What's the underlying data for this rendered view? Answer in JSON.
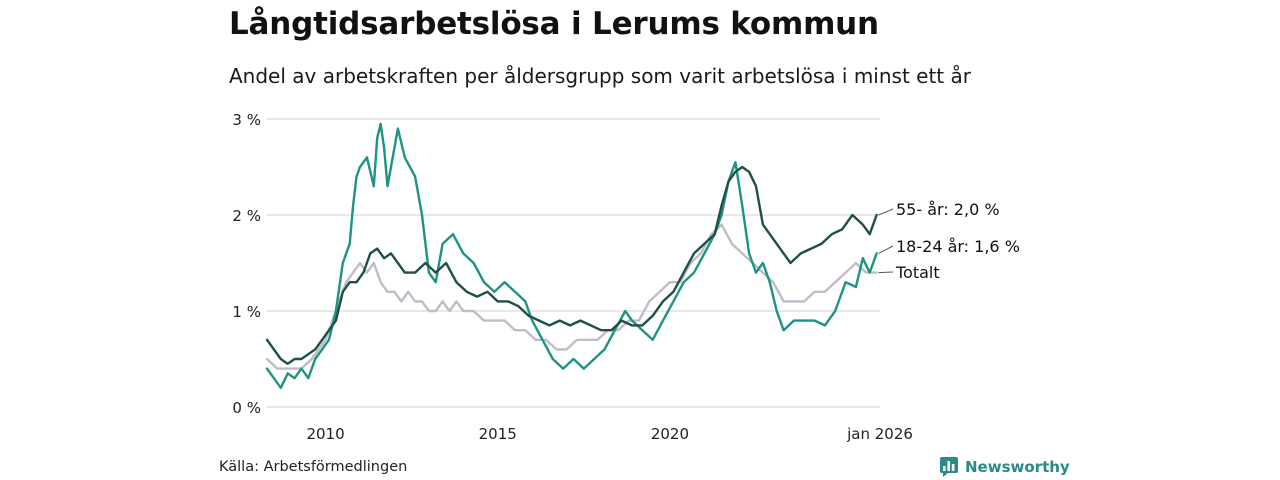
{
  "header": {
    "title": "Långtidsarbetslösa i Lerums kommun",
    "subtitle": "Andel av arbetskraften per åldersgrupp som varit arbetslösa i minst ett år"
  },
  "footer": {
    "source": "Källa: Arbetsförmedlingen",
    "brand": "Newsworthy"
  },
  "colors": {
    "age55": "#1f4f47",
    "age1824": "#1e9384",
    "total": "#c0bcc9",
    "grid": "#d9d9d9",
    "brand": "#2a8a85"
  },
  "chart_data": {
    "type": "line",
    "title": "Långtidsarbetslösa i Lerums kommun",
    "subtitle": "Andel av arbetskraften per åldersgrupp som varit arbetslösa i minst ett år",
    "ylim": [
      0,
      3
    ],
    "yticks": [
      0,
      1,
      2,
      3
    ],
    "ytick_labels": [
      "0 %",
      "1 %",
      "2 %",
      "3 %"
    ],
    "xlim": [
      2008.3,
      2026.1
    ],
    "xticks": [
      2010,
      2015,
      2020,
      2026.1
    ],
    "xtick_labels": [
      "2010",
      "2015",
      "2020",
      "jan 2026"
    ],
    "grid": "horizontal",
    "series": [
      {
        "name": "Totalt",
        "label": "Totalt",
        "color": "#c0bcc9",
        "points": [
          [
            2008.3,
            0.5
          ],
          [
            2008.6,
            0.4
          ],
          [
            2009.0,
            0.4
          ],
          [
            2009.3,
            0.4
          ],
          [
            2009.6,
            0.5
          ],
          [
            2009.8,
            0.6
          ],
          [
            2010.0,
            0.7
          ],
          [
            2010.2,
            0.9
          ],
          [
            2010.4,
            1.1
          ],
          [
            2010.6,
            1.3
          ],
          [
            2010.8,
            1.4
          ],
          [
            2011.0,
            1.5
          ],
          [
            2011.2,
            1.4
          ],
          [
            2011.4,
            1.5
          ],
          [
            2011.6,
            1.3
          ],
          [
            2011.8,
            1.2
          ],
          [
            2012.0,
            1.2
          ],
          [
            2012.2,
            1.1
          ],
          [
            2012.4,
            1.2
          ],
          [
            2012.6,
            1.1
          ],
          [
            2012.8,
            1.1
          ],
          [
            2013.0,
            1.0
          ],
          [
            2013.2,
            1.0
          ],
          [
            2013.4,
            1.1
          ],
          [
            2013.6,
            1.0
          ],
          [
            2013.8,
            1.1
          ],
          [
            2014.0,
            1.0
          ],
          [
            2014.3,
            1.0
          ],
          [
            2014.6,
            0.9
          ],
          [
            2014.9,
            0.9
          ],
          [
            2015.2,
            0.9
          ],
          [
            2015.5,
            0.8
          ],
          [
            2015.8,
            0.8
          ],
          [
            2016.1,
            0.7
          ],
          [
            2016.4,
            0.7
          ],
          [
            2016.7,
            0.6
          ],
          [
            2017.0,
            0.6
          ],
          [
            2017.3,
            0.7
          ],
          [
            2017.6,
            0.7
          ],
          [
            2017.9,
            0.7
          ],
          [
            2018.2,
            0.8
          ],
          [
            2018.5,
            0.8
          ],
          [
            2018.8,
            0.9
          ],
          [
            2019.1,
            0.9
          ],
          [
            2019.4,
            1.1
          ],
          [
            2019.7,
            1.2
          ],
          [
            2020.0,
            1.3
          ],
          [
            2020.3,
            1.3
          ],
          [
            2020.6,
            1.5
          ],
          [
            2020.9,
            1.6
          ],
          [
            2021.2,
            1.8
          ],
          [
            2021.5,
            1.9
          ],
          [
            2021.8,
            1.7
          ],
          [
            2022.1,
            1.6
          ],
          [
            2022.4,
            1.5
          ],
          [
            2022.7,
            1.4
          ],
          [
            2023.0,
            1.3
          ],
          [
            2023.3,
            1.1
          ],
          [
            2023.6,
            1.1
          ],
          [
            2023.9,
            1.1
          ],
          [
            2024.2,
            1.2
          ],
          [
            2024.5,
            1.2
          ],
          [
            2024.8,
            1.3
          ],
          [
            2025.1,
            1.4
          ],
          [
            2025.4,
            1.5
          ],
          [
            2025.7,
            1.4
          ],
          [
            2026.0,
            1.4
          ]
        ]
      },
      {
        "name": "18-24 år",
        "label": "18-24 år: 1,6 %",
        "color": "#1e9384",
        "points": [
          [
            2008.3,
            0.4
          ],
          [
            2008.5,
            0.3
          ],
          [
            2008.7,
            0.2
          ],
          [
            2008.9,
            0.35
          ],
          [
            2009.1,
            0.3
          ],
          [
            2009.3,
            0.4
          ],
          [
            2009.5,
            0.3
          ],
          [
            2009.7,
            0.5
          ],
          [
            2009.9,
            0.6
          ],
          [
            2010.1,
            0.7
          ],
          [
            2010.3,
            1.0
          ],
          [
            2010.5,
            1.5
          ],
          [
            2010.7,
            1.7
          ],
          [
            2010.8,
            2.1
          ],
          [
            2010.9,
            2.4
          ],
          [
            2011.0,
            2.5
          ],
          [
            2011.2,
            2.6
          ],
          [
            2011.4,
            2.3
          ],
          [
            2011.5,
            2.8
          ],
          [
            2011.6,
            2.95
          ],
          [
            2011.7,
            2.7
          ],
          [
            2011.8,
            2.3
          ],
          [
            2011.9,
            2.5
          ],
          [
            2012.1,
            2.9
          ],
          [
            2012.3,
            2.6
          ],
          [
            2012.6,
            2.4
          ],
          [
            2012.8,
            2.0
          ],
          [
            2013.0,
            1.4
          ],
          [
            2013.2,
            1.3
          ],
          [
            2013.4,
            1.7
          ],
          [
            2013.7,
            1.8
          ],
          [
            2014.0,
            1.6
          ],
          [
            2014.3,
            1.5
          ],
          [
            2014.6,
            1.3
          ],
          [
            2014.9,
            1.2
          ],
          [
            2015.2,
            1.3
          ],
          [
            2015.5,
            1.2
          ],
          [
            2015.8,
            1.1
          ],
          [
            2016.0,
            0.9
          ],
          [
            2016.3,
            0.7
          ],
          [
            2016.6,
            0.5
          ],
          [
            2016.9,
            0.4
          ],
          [
            2017.2,
            0.5
          ],
          [
            2017.5,
            0.4
          ],
          [
            2017.8,
            0.5
          ],
          [
            2018.1,
            0.6
          ],
          [
            2018.4,
            0.8
          ],
          [
            2018.7,
            1.0
          ],
          [
            2018.9,
            0.9
          ],
          [
            2019.2,
            0.8
          ],
          [
            2019.5,
            0.7
          ],
          [
            2019.8,
            0.9
          ],
          [
            2020.1,
            1.1
          ],
          [
            2020.4,
            1.3
          ],
          [
            2020.7,
            1.4
          ],
          [
            2021.0,
            1.6
          ],
          [
            2021.3,
            1.8
          ],
          [
            2021.5,
            2.0
          ],
          [
            2021.7,
            2.35
          ],
          [
            2021.9,
            2.55
          ],
          [
            2022.1,
            2.1
          ],
          [
            2022.3,
            1.6
          ],
          [
            2022.5,
            1.4
          ],
          [
            2022.7,
            1.5
          ],
          [
            2022.9,
            1.3
          ],
          [
            2023.1,
            1.0
          ],
          [
            2023.3,
            0.8
          ],
          [
            2023.6,
            0.9
          ],
          [
            2023.9,
            0.9
          ],
          [
            2024.2,
            0.9
          ],
          [
            2024.5,
            0.85
          ],
          [
            2024.8,
            1.0
          ],
          [
            2025.1,
            1.3
          ],
          [
            2025.4,
            1.25
          ],
          [
            2025.6,
            1.55
          ],
          [
            2025.8,
            1.4
          ],
          [
            2026.0,
            1.6
          ]
        ]
      },
      {
        "name": "55- år",
        "label": "55- år: 2,0 %",
        "color": "#1f4f47",
        "points": [
          [
            2008.3,
            0.7
          ],
          [
            2008.5,
            0.6
          ],
          [
            2008.7,
            0.5
          ],
          [
            2008.9,
            0.45
          ],
          [
            2009.1,
            0.5
          ],
          [
            2009.3,
            0.5
          ],
          [
            2009.5,
            0.55
          ],
          [
            2009.7,
            0.6
          ],
          [
            2009.9,
            0.7
          ],
          [
            2010.1,
            0.8
          ],
          [
            2010.3,
            0.9
          ],
          [
            2010.5,
            1.2
          ],
          [
            2010.7,
            1.3
          ],
          [
            2010.9,
            1.3
          ],
          [
            2011.1,
            1.4
          ],
          [
            2011.3,
            1.6
          ],
          [
            2011.5,
            1.65
          ],
          [
            2011.7,
            1.55
          ],
          [
            2011.9,
            1.6
          ],
          [
            2012.1,
            1.5
          ],
          [
            2012.3,
            1.4
          ],
          [
            2012.6,
            1.4
          ],
          [
            2012.9,
            1.5
          ],
          [
            2013.2,
            1.4
          ],
          [
            2013.5,
            1.5
          ],
          [
            2013.8,
            1.3
          ],
          [
            2014.1,
            1.2
          ],
          [
            2014.4,
            1.15
          ],
          [
            2014.7,
            1.2
          ],
          [
            2015.0,
            1.1
          ],
          [
            2015.3,
            1.1
          ],
          [
            2015.6,
            1.05
          ],
          [
            2015.9,
            0.95
          ],
          [
            2016.2,
            0.9
          ],
          [
            2016.5,
            0.85
          ],
          [
            2016.8,
            0.9
          ],
          [
            2017.1,
            0.85
          ],
          [
            2017.4,
            0.9
          ],
          [
            2017.7,
            0.85
          ],
          [
            2018.0,
            0.8
          ],
          [
            2018.3,
            0.8
          ],
          [
            2018.6,
            0.9
          ],
          [
            2018.9,
            0.85
          ],
          [
            2019.2,
            0.85
          ],
          [
            2019.5,
            0.95
          ],
          [
            2019.8,
            1.1
          ],
          [
            2020.1,
            1.2
          ],
          [
            2020.4,
            1.4
          ],
          [
            2020.7,
            1.6
          ],
          [
            2021.0,
            1.7
          ],
          [
            2021.3,
            1.8
          ],
          [
            2021.5,
            2.1
          ],
          [
            2021.7,
            2.35
          ],
          [
            2021.9,
            2.45
          ],
          [
            2022.1,
            2.5
          ],
          [
            2022.3,
            2.45
          ],
          [
            2022.5,
            2.3
          ],
          [
            2022.7,
            1.9
          ],
          [
            2022.9,
            1.8
          ],
          [
            2023.1,
            1.7
          ],
          [
            2023.3,
            1.6
          ],
          [
            2023.5,
            1.5
          ],
          [
            2023.8,
            1.6
          ],
          [
            2024.1,
            1.65
          ],
          [
            2024.4,
            1.7
          ],
          [
            2024.7,
            1.8
          ],
          [
            2025.0,
            1.85
          ],
          [
            2025.3,
            2.0
          ],
          [
            2025.6,
            1.9
          ],
          [
            2025.8,
            1.8
          ],
          [
            2026.0,
            2.0
          ]
        ]
      }
    ]
  }
}
